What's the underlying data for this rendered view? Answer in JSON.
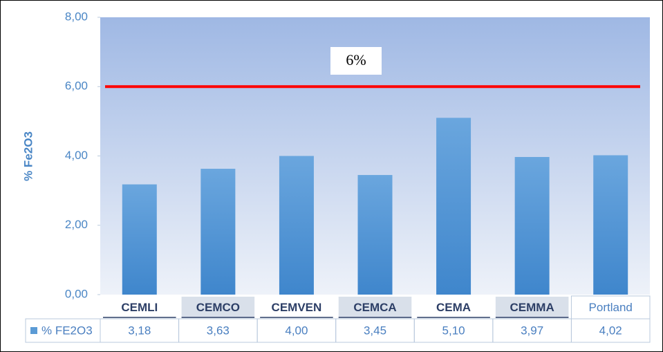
{
  "chart_data": {
    "type": "bar",
    "y_label": "% Fe2O3",
    "categories": [
      "CEMLI",
      "CEMCO",
      "CEMVEN",
      "CEMCA",
      "CEMA",
      "CEMMA",
      "Portland"
    ],
    "series": [
      {
        "name": "% FE2O3",
        "color": "#5b9bd5",
        "values": [
          3.18,
          3.63,
          4.0,
          3.45,
          5.1,
          3.97,
          4.02
        ],
        "value_labels": [
          "3,18",
          "3,63",
          "4,00",
          "3,45",
          "5,10",
          "3,97",
          "4,02"
        ]
      }
    ],
    "ylim": [
      0,
      8
    ],
    "yticks": [
      {
        "value": 0,
        "label": "0,00"
      },
      {
        "value": 2,
        "label": "2,00"
      },
      {
        "value": 4,
        "label": "4,00"
      },
      {
        "value": 6,
        "label": "6,00"
      },
      {
        "value": 8,
        "label": "8,00"
      }
    ],
    "reference_line": {
      "value": 6,
      "label": "6%",
      "color": "#ff0000"
    }
  }
}
